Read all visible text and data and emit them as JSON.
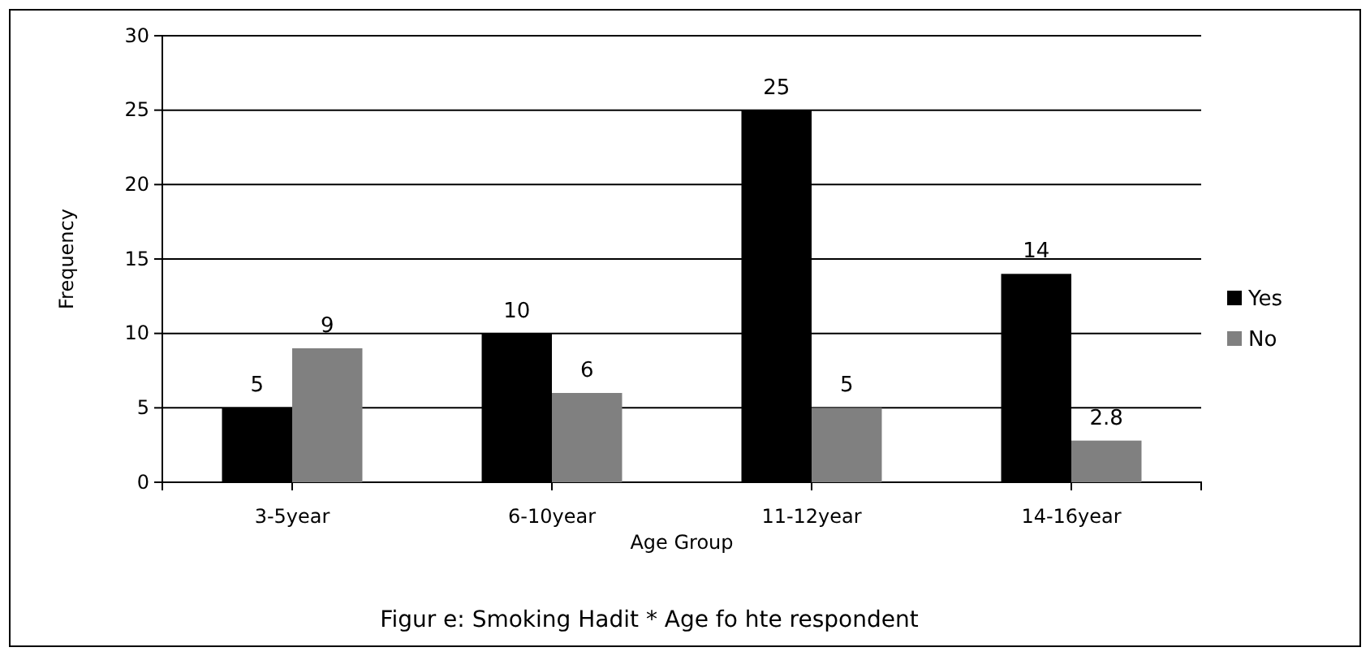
{
  "chart_data": {
    "type": "bar",
    "title": "Figur e: Smoking Hadit * Age fo hte respondent",
    "xlabel": "Age Group",
    "ylabel": "Frequency",
    "categories": [
      "3-5year",
      "6-10year",
      "11-12year",
      "14-16year"
    ],
    "series": [
      {
        "name": "Yes",
        "color": "#000000",
        "values": [
          5,
          10,
          25,
          14
        ]
      },
      {
        "name": "No",
        "color": "#808080",
        "values": [
          9,
          6,
          5,
          2.8
        ]
      }
    ],
    "ylim": [
      0,
      30
    ],
    "yticks": [
      0,
      5,
      10,
      15,
      20,
      25,
      30
    ],
    "grid": "y",
    "legend": "right",
    "data_labels": true
  }
}
